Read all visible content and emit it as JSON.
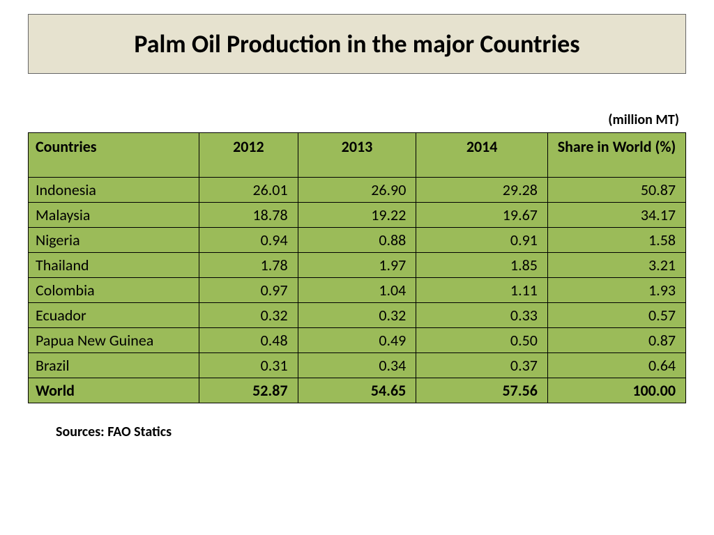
{
  "title": "Palm Oil Production in the major Countries",
  "unit_label": "(million MT)",
  "source_label": "Sources: FAO Statics",
  "colors": {
    "title_bg": "#e6e2cf",
    "header_bg": "#9bbb59",
    "row_bg": "#9bbb59",
    "border": "#000000",
    "text": "#000000"
  },
  "table": {
    "type": "table",
    "col_widths_pct": [
      26,
      15,
      18,
      20,
      21
    ],
    "header_fontsize": 22,
    "cell_fontsize": 22,
    "columns": [
      "Countries",
      "2012",
      "2013",
      "2014",
      "Share in World (%)"
    ],
    "rows": [
      {
        "country": "Indonesia",
        "y2012": "26.01",
        "y2013": "26.90",
        "y2014": "29.28",
        "share": "50.87",
        "bold": false
      },
      {
        "country": "Malaysia",
        "y2012": "18.78",
        "y2013": "19.22",
        "y2014": "19.67",
        "share": "34.17",
        "bold": false
      },
      {
        "country": "Nigeria",
        "y2012": "0.94",
        "y2013": "0.88",
        "y2014": "0.91",
        "share": "1.58",
        "bold": false
      },
      {
        "country": "Thailand",
        "y2012": "1.78",
        "y2013": "1.97",
        "y2014": "1.85",
        "share": "3.21",
        "bold": false
      },
      {
        "country": "Colombia",
        "y2012": "0.97",
        "y2013": "1.04",
        "y2014": "1.11",
        "share": "1.93",
        "bold": false
      },
      {
        "country": "Ecuador",
        "y2012": "0.32",
        "y2013": "0.32",
        "y2014": "0.33",
        "share": "0.57",
        "bold": false
      },
      {
        "country": "Papua New Guinea",
        "y2012": "0.48",
        "y2013": "0.49",
        "y2014": "0.50",
        "share": "0.87",
        "bold": false
      },
      {
        "country": "Brazil",
        "y2012": "0.31",
        "y2013": "0.34",
        "y2014": "0.37",
        "share": "0.64",
        "bold": false
      },
      {
        "country": "World",
        "y2012": "52.87",
        "y2013": "54.65",
        "y2014": "57.56",
        "share": "100.00",
        "bold": true
      }
    ]
  }
}
